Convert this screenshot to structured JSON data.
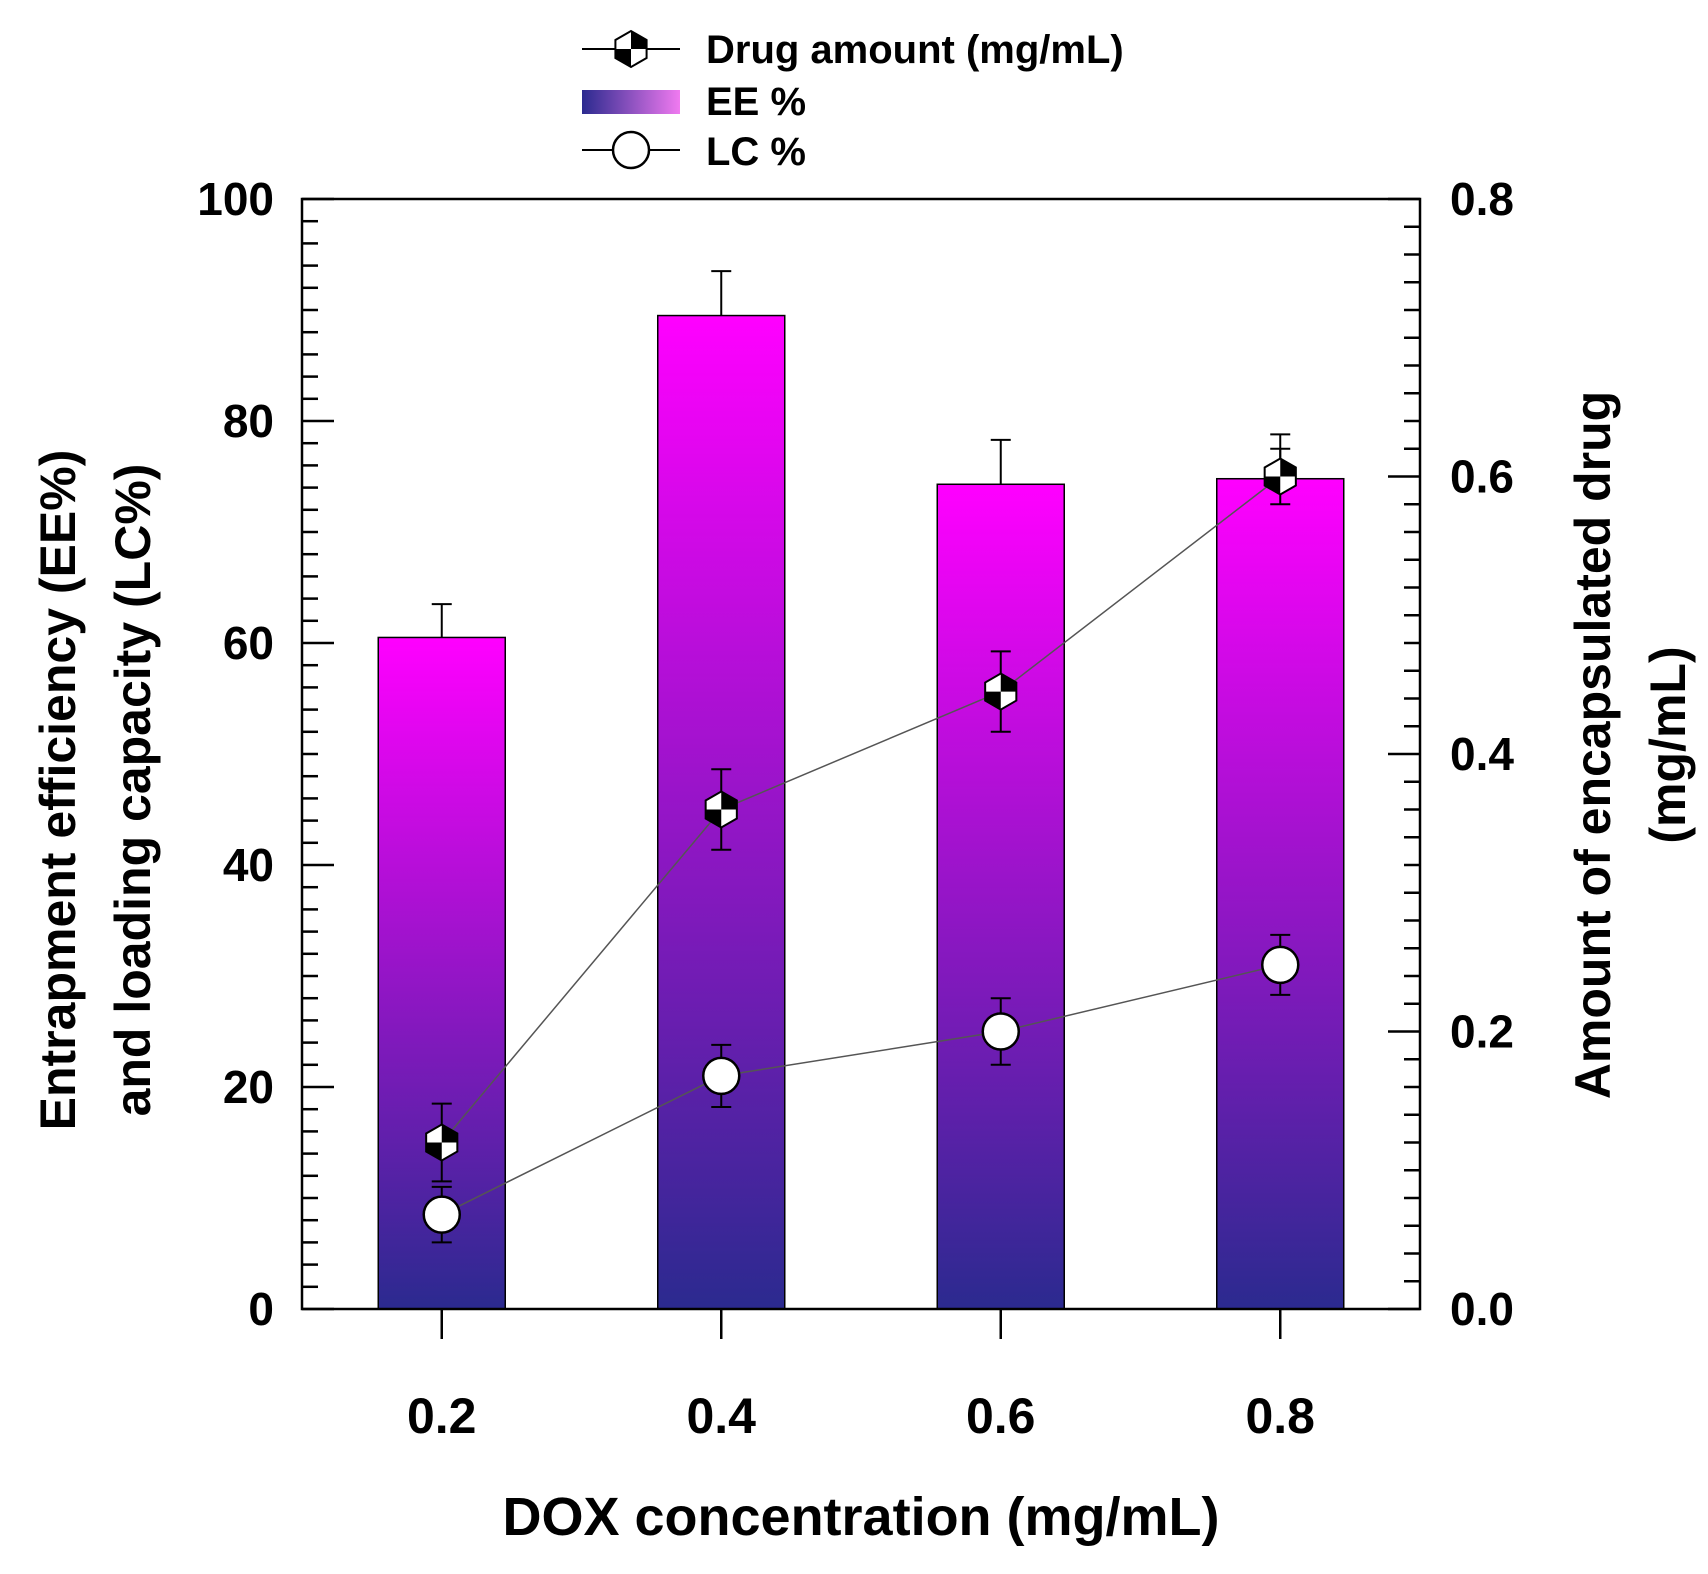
{
  "chart_data": {
    "type": "bar",
    "title": "",
    "xlabel": "DOX concentration (mg/mL)",
    "ylabel_left_lines": [
      "Entrapment efficiency (EE%)",
      "and loading capacity (LC%)"
    ],
    "ylabel_right_lines": [
      "Amount of encapsulated drug",
      "(mg/mL)"
    ],
    "categories": [
      "0.2",
      "0.4",
      "0.6",
      "0.8"
    ],
    "x": [
      0.2,
      0.4,
      0.6,
      0.8
    ],
    "xlim": [
      0.1,
      0.9
    ],
    "ylim_left": [
      0,
      100
    ],
    "ylim_right": [
      0,
      0.8
    ],
    "left_ticks": [
      "0",
      "20",
      "40",
      "60",
      "80",
      "100"
    ],
    "right_ticks": [
      "0.0",
      "0.2",
      "0.4",
      "0.6",
      "0.8"
    ],
    "grid": false,
    "legend_position": "top-center",
    "legend": [
      "Drug amount (mg/mL)",
      "EE %",
      "LC %"
    ],
    "series": [
      {
        "name": "EE %",
        "type": "bar",
        "axis": "left",
        "values": [
          60.5,
          89.5,
          74.3,
          74.8
        ],
        "errors": [
          3.0,
          4.0,
          4.0,
          4.0
        ]
      },
      {
        "name": "LC %",
        "type": "line",
        "axis": "left",
        "values": [
          8.5,
          21.0,
          25.0,
          31.0
        ],
        "errors": [
          2.5,
          2.8,
          3.0,
          2.7
        ]
      },
      {
        "name": "Drug amount (mg/mL)",
        "type": "line",
        "axis": "right",
        "values": [
          0.12,
          0.36,
          0.445,
          0.6
        ],
        "errors": [
          0.028,
          0.029,
          0.029,
          0.02
        ]
      }
    ],
    "colors": {
      "bar_top": "#ff00ff",
      "bar_bottom": "#2b2a8f",
      "line": "#555555"
    }
  }
}
